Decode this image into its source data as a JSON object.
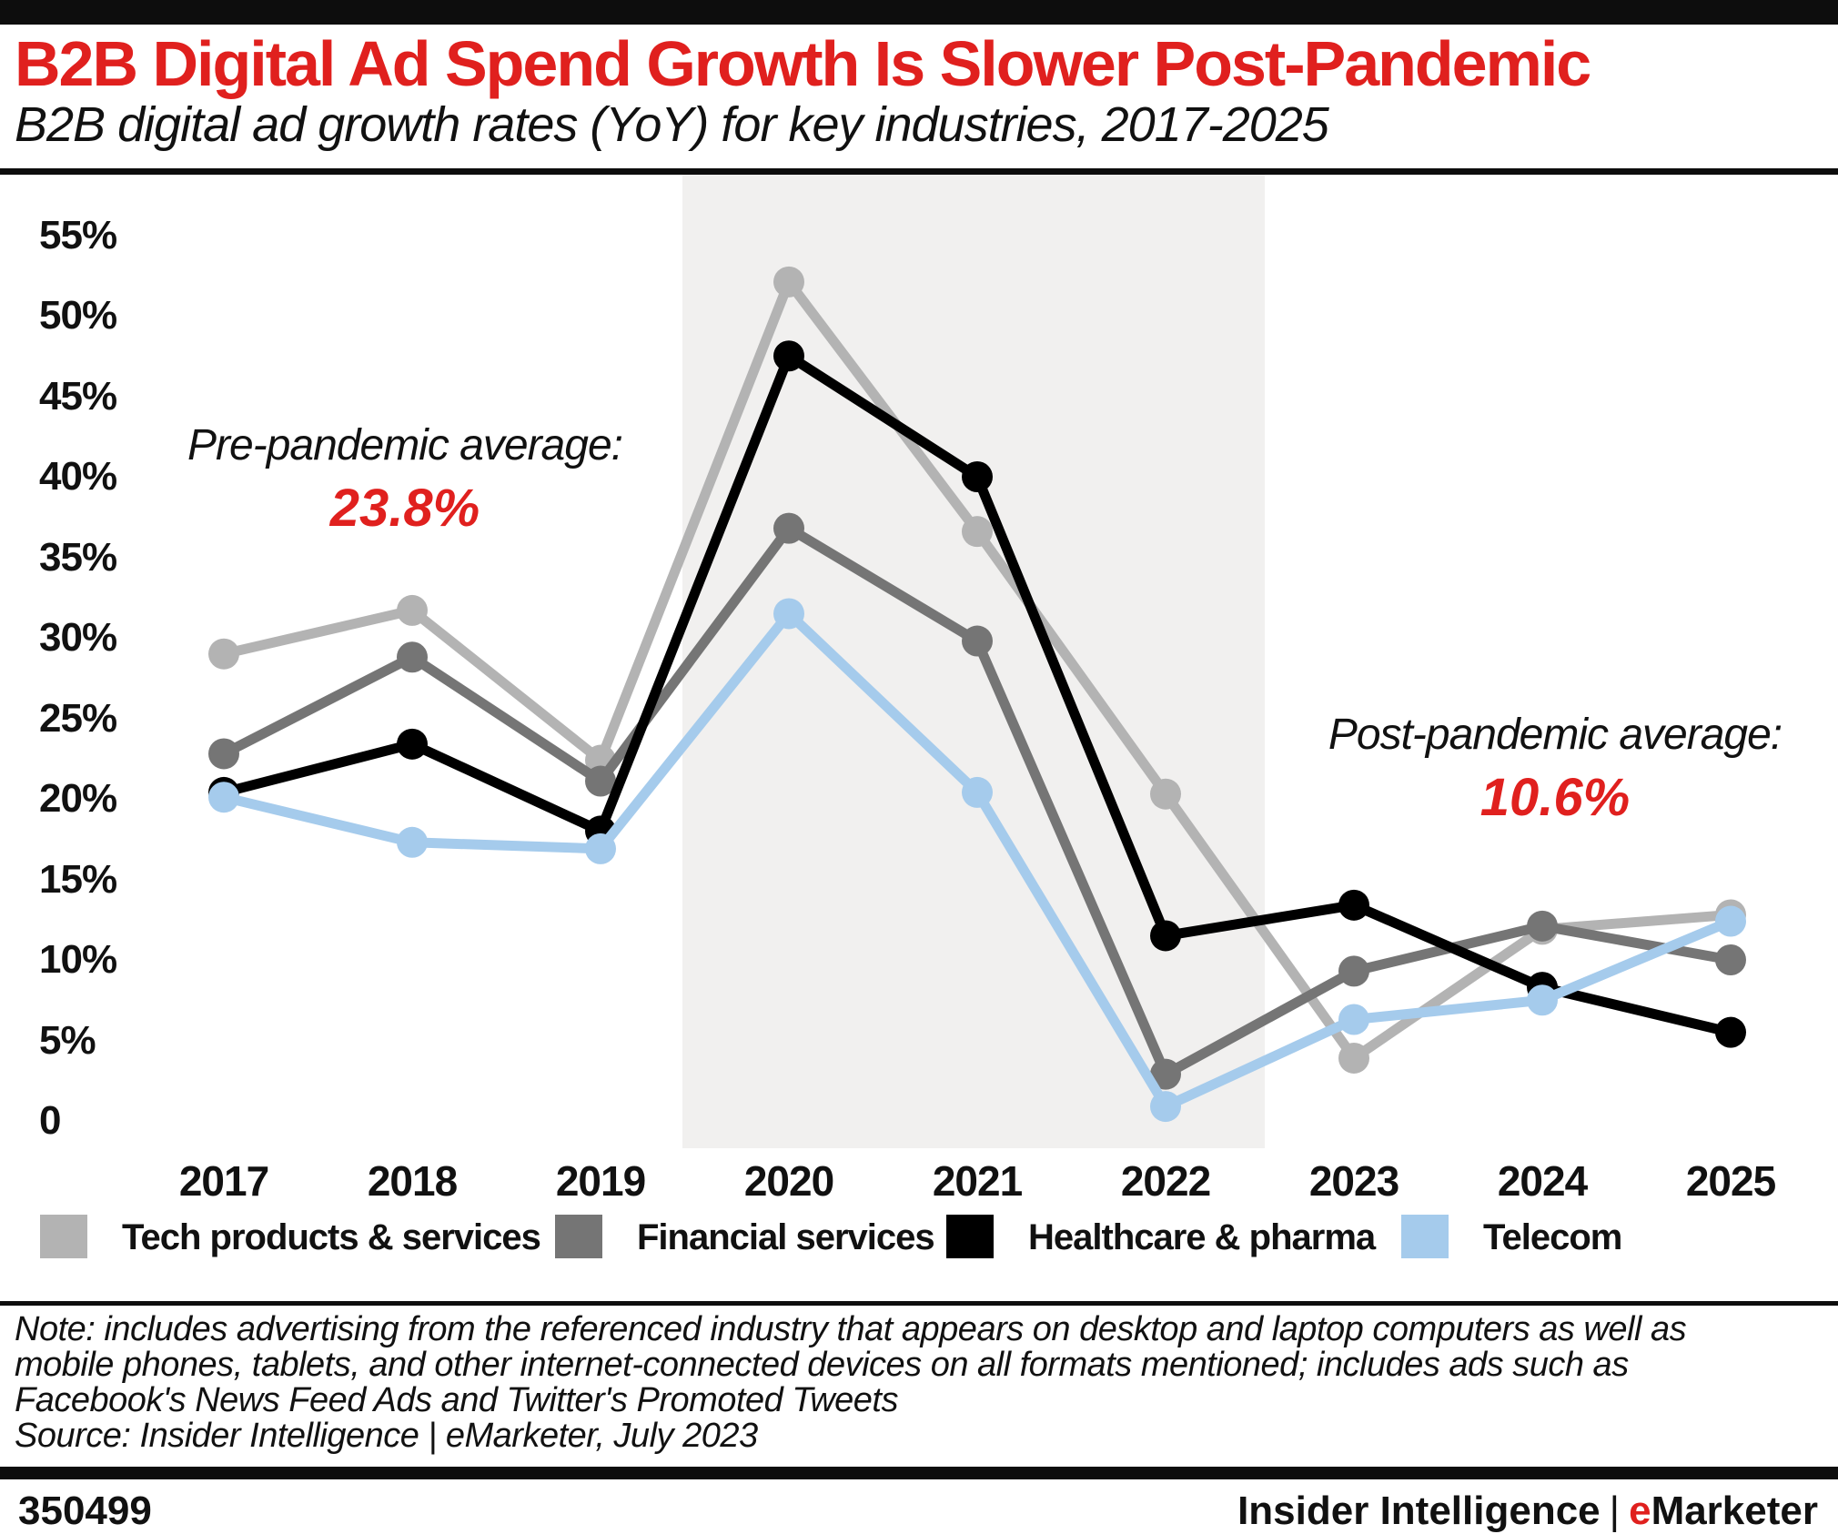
{
  "header": {
    "title": "B2B Digital Ad Spend Growth Is Slower Post-Pandemic",
    "subtitle": "B2B digital ad growth rates (YoY) for key industries, 2017-2025"
  },
  "chart_data": {
    "type": "line",
    "title": "B2B Digital Ad Spend Growth Is Slower Post-Pandemic",
    "subtitle": "B2B digital ad growth rates (YoY) for key industries, 2017-2025",
    "x": [
      "2017",
      "2018",
      "2019",
      "2020",
      "2021",
      "2022",
      "2023",
      "2024",
      "2025"
    ],
    "series": [
      {
        "name": "Tech products & services",
        "color": "#b3b3b3",
        "values": [
          29.0,
          31.7,
          22.4,
          52.1,
          36.6,
          20.3,
          3.9,
          11.9,
          12.8
        ]
      },
      {
        "name": "Financial services",
        "color": "#757575",
        "values": [
          22.8,
          28.8,
          21.1,
          36.8,
          29.8,
          2.9,
          9.3,
          12.1,
          10.0
        ]
      },
      {
        "name": "Healthcare & pharma",
        "color": "#000000",
        "values": [
          20.4,
          23.4,
          18.0,
          47.5,
          40.0,
          11.5,
          13.4,
          8.3,
          5.5
        ]
      },
      {
        "name": "Telecom",
        "color": "#a5cbec",
        "values": [
          20.1,
          17.3,
          16.9,
          31.5,
          20.4,
          0.9,
          6.3,
          7.5,
          12.4
        ]
      }
    ],
    "yticks": [
      {
        "v": 55,
        "label": "55%"
      },
      {
        "v": 50,
        "label": "50%"
      },
      {
        "v": 45,
        "label": "45%"
      },
      {
        "v": 40,
        "label": "40%"
      },
      {
        "v": 35,
        "label": "35%"
      },
      {
        "v": 30,
        "label": "30%"
      },
      {
        "v": 25,
        "label": "25%"
      },
      {
        "v": 20,
        "label": "20%"
      },
      {
        "v": 15,
        "label": "15%"
      },
      {
        "v": 10,
        "label": "10%"
      },
      {
        "v": 5,
        "label": "5%"
      },
      {
        "v": 0,
        "label": "0"
      }
    ],
    "ylim": [
      0,
      57
    ],
    "grid": false,
    "legend_position": "bottom",
    "pandemic_band": {
      "from": "2020",
      "to": "2022",
      "color": "#f1f0ef"
    },
    "annotations": [
      {
        "id": "pre",
        "label": "Pre-pandemic average:",
        "value": "23.8%"
      },
      {
        "id": "post",
        "label": "Post-pandemic average:",
        "value": "10.6%"
      }
    ],
    "accent_color": "#e0201e"
  },
  "note": "Note: includes advertising from the referenced industry that appears on desktop and laptop computers as well as mobile phones, tablets, and other internet-connected devices on all formats mentioned; includes ads such as Facebook's News Feed Ads and Twitter's Promoted Tweets",
  "source": "Source: Insider Intelligence | eMarketer, July 2023",
  "footer": {
    "chart_id": "350499",
    "brand_left": "Insider Intelligence",
    "brand_sep": "|",
    "brand_e": "e",
    "brand_rest": "Marketer"
  }
}
